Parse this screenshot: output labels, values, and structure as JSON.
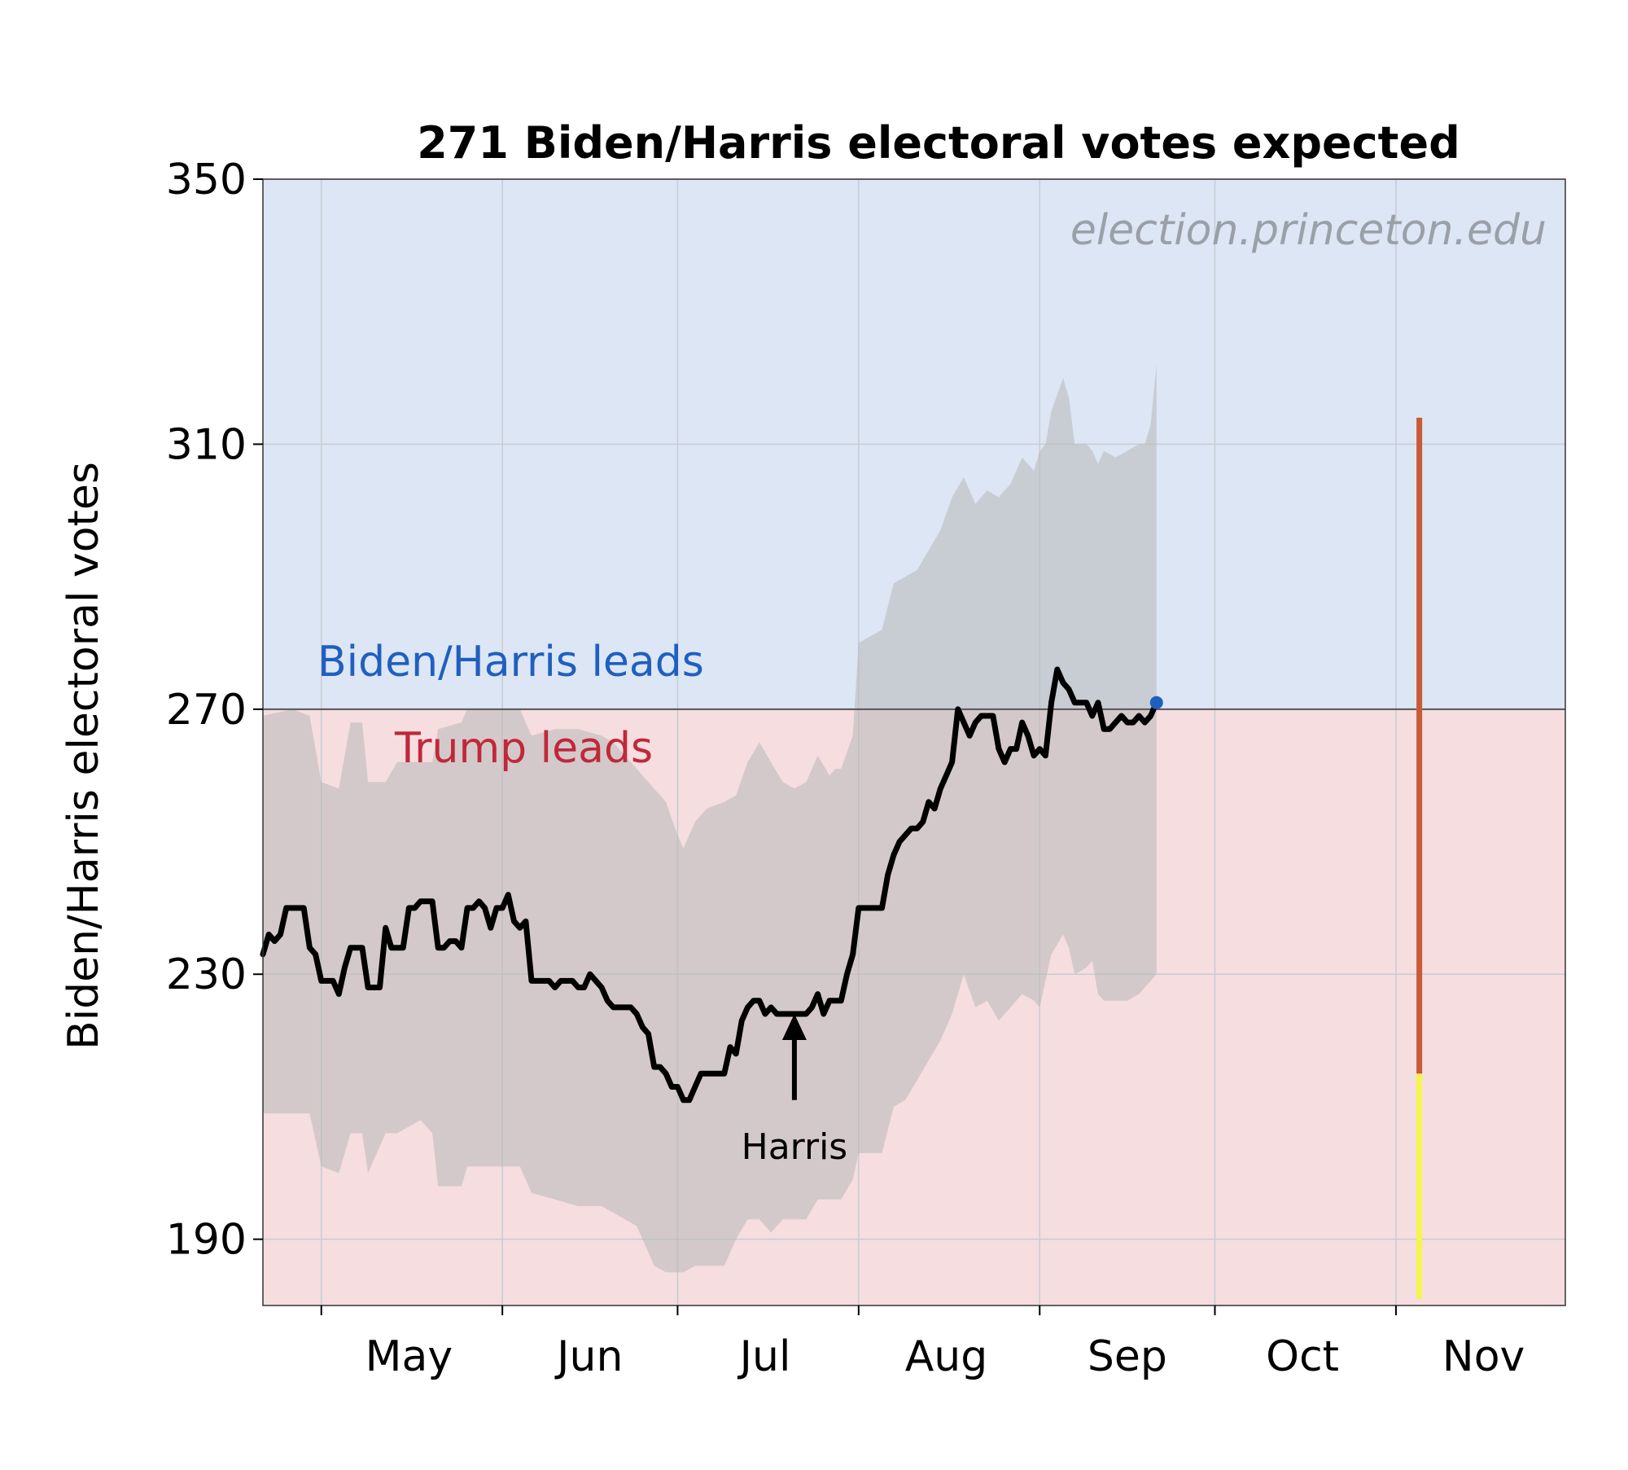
{
  "chart_data": {
    "type": "line",
    "title": "271 Biden/Harris electoral votes expected",
    "ylabel": "Biden/Harris electoral votes",
    "xlabel": "",
    "watermark": "election.princeton.edu",
    "ylim": [
      180,
      350
    ],
    "y_ticks": [
      190,
      230,
      270,
      310,
      350
    ],
    "xlim": [
      "2024-04-21",
      "2024-11-30"
    ],
    "x_ticks": [
      {
        "date": "2024-05-01",
        "label": "May"
      },
      {
        "date": "2024-06-01",
        "label": "Jun"
      },
      {
        "date": "2024-07-01",
        "label": "Jul"
      },
      {
        "date": "2024-08-01",
        "label": "Aug"
      },
      {
        "date": "2024-09-01",
        "label": "Sep"
      },
      {
        "date": "2024-10-01",
        "label": "Oct"
      },
      {
        "date": "2024-11-01",
        "label": "Nov"
      }
    ],
    "x_tick_label_offset_days": 15,
    "threshold": 270,
    "regions": {
      "above_label": "Biden/Harris leads",
      "below_label": "Trump leads",
      "above_color": "#dce6f5",
      "below_color": "#f5dde0"
    },
    "grid": true,
    "series": [
      {
        "role": "median",
        "color": "#000000",
        "points": [
          [
            "2024-04-21",
            233
          ],
          [
            "2024-04-22",
            236
          ],
          [
            "2024-04-23",
            235
          ],
          [
            "2024-04-24",
            236
          ],
          [
            "2024-04-25",
            240
          ],
          [
            "2024-04-26",
            240
          ],
          [
            "2024-04-27",
            240
          ],
          [
            "2024-04-28",
            240
          ],
          [
            "2024-04-29",
            234
          ],
          [
            "2024-04-30",
            233
          ],
          [
            "2024-05-01",
            229
          ],
          [
            "2024-05-02",
            229
          ],
          [
            "2024-05-03",
            229
          ],
          [
            "2024-05-04",
            227
          ],
          [
            "2024-05-05",
            231
          ],
          [
            "2024-05-06",
            234
          ],
          [
            "2024-05-07",
            234
          ],
          [
            "2024-05-08",
            234
          ],
          [
            "2024-05-09",
            228
          ],
          [
            "2024-05-10",
            228
          ],
          [
            "2024-05-11",
            228
          ],
          [
            "2024-05-12",
            237
          ],
          [
            "2024-05-13",
            234
          ],
          [
            "2024-05-14",
            234
          ],
          [
            "2024-05-15",
            234
          ],
          [
            "2024-05-16",
            240
          ],
          [
            "2024-05-17",
            240
          ],
          [
            "2024-05-18",
            241
          ],
          [
            "2024-05-19",
            241
          ],
          [
            "2024-05-20",
            241
          ],
          [
            "2024-05-21",
            234
          ],
          [
            "2024-05-22",
            234
          ],
          [
            "2024-05-23",
            235
          ],
          [
            "2024-05-24",
            235
          ],
          [
            "2024-05-25",
            234
          ],
          [
            "2024-05-26",
            240
          ],
          [
            "2024-05-27",
            240
          ],
          [
            "2024-05-28",
            241
          ],
          [
            "2024-05-29",
            240
          ],
          [
            "2024-05-30",
            237
          ],
          [
            "2024-05-31",
            240
          ],
          [
            "2024-06-01",
            240
          ],
          [
            "2024-06-02",
            242
          ],
          [
            "2024-06-03",
            238
          ],
          [
            "2024-06-04",
            237
          ],
          [
            "2024-06-05",
            238
          ],
          [
            "2024-06-06",
            229
          ],
          [
            "2024-06-07",
            229
          ],
          [
            "2024-06-08",
            229
          ],
          [
            "2024-06-09",
            229
          ],
          [
            "2024-06-10",
            228
          ],
          [
            "2024-06-11",
            229
          ],
          [
            "2024-06-12",
            229
          ],
          [
            "2024-06-13",
            229
          ],
          [
            "2024-06-14",
            228
          ],
          [
            "2024-06-15",
            228
          ],
          [
            "2024-06-16",
            230
          ],
          [
            "2024-06-17",
            229
          ],
          [
            "2024-06-18",
            228
          ],
          [
            "2024-06-19",
            226
          ],
          [
            "2024-06-20",
            225
          ],
          [
            "2024-06-21",
            225
          ],
          [
            "2024-06-22",
            225
          ],
          [
            "2024-06-23",
            225
          ],
          [
            "2024-06-24",
            224
          ],
          [
            "2024-06-25",
            222
          ],
          [
            "2024-06-26",
            221
          ],
          [
            "2024-06-27",
            216
          ],
          [
            "2024-06-28",
            216
          ],
          [
            "2024-06-29",
            215
          ],
          [
            "2024-06-30",
            213
          ],
          [
            "2024-07-01",
            213
          ],
          [
            "2024-07-02",
            211
          ],
          [
            "2024-07-03",
            211
          ],
          [
            "2024-07-04",
            213
          ],
          [
            "2024-07-05",
            215
          ],
          [
            "2024-07-06",
            215
          ],
          [
            "2024-07-07",
            215
          ],
          [
            "2024-07-08",
            215
          ],
          [
            "2024-07-09",
            215
          ],
          [
            "2024-07-10",
            219
          ],
          [
            "2024-07-11",
            218
          ],
          [
            "2024-07-12",
            223
          ],
          [
            "2024-07-13",
            225
          ],
          [
            "2024-07-14",
            226
          ],
          [
            "2024-07-15",
            226
          ],
          [
            "2024-07-16",
            224
          ],
          [
            "2024-07-17",
            225
          ],
          [
            "2024-07-18",
            224
          ],
          [
            "2024-07-19",
            224
          ],
          [
            "2024-07-20",
            224
          ],
          [
            "2024-07-21",
            224
          ],
          [
            "2024-07-22",
            224
          ],
          [
            "2024-07-23",
            224
          ],
          [
            "2024-07-24",
            225
          ],
          [
            "2024-07-25",
            227
          ],
          [
            "2024-07-26",
            224
          ],
          [
            "2024-07-27",
            226
          ],
          [
            "2024-07-28",
            226
          ],
          [
            "2024-07-29",
            226
          ],
          [
            "2024-07-30",
            230
          ],
          [
            "2024-07-31",
            233
          ],
          [
            "2024-08-01",
            240
          ],
          [
            "2024-08-02",
            240
          ],
          [
            "2024-08-03",
            240
          ],
          [
            "2024-08-04",
            240
          ],
          [
            "2024-08-05",
            240
          ],
          [
            "2024-08-06",
            245
          ],
          [
            "2024-08-07",
            248
          ],
          [
            "2024-08-08",
            250
          ],
          [
            "2024-08-09",
            251
          ],
          [
            "2024-08-10",
            252
          ],
          [
            "2024-08-11",
            252
          ],
          [
            "2024-08-12",
            253
          ],
          [
            "2024-08-13",
            256
          ],
          [
            "2024-08-14",
            255
          ],
          [
            "2024-08-15",
            258
          ],
          [
            "2024-08-16",
            260
          ],
          [
            "2024-08-17",
            262
          ],
          [
            "2024-08-18",
            270
          ],
          [
            "2024-08-19",
            268
          ],
          [
            "2024-08-20",
            266
          ],
          [
            "2024-08-21",
            268
          ],
          [
            "2024-08-22",
            269
          ],
          [
            "2024-08-23",
            269
          ],
          [
            "2024-08-24",
            269
          ],
          [
            "2024-08-25",
            264
          ],
          [
            "2024-08-26",
            262
          ],
          [
            "2024-08-27",
            264
          ],
          [
            "2024-08-28",
            264
          ],
          [
            "2024-08-29",
            268
          ],
          [
            "2024-08-30",
            266
          ],
          [
            "2024-08-31",
            263
          ],
          [
            "2024-09-01",
            264
          ],
          [
            "2024-09-02",
            263
          ],
          [
            "2024-09-03",
            271
          ],
          [
            "2024-09-04",
            276
          ],
          [
            "2024-09-05",
            274
          ],
          [
            "2024-09-06",
            273
          ],
          [
            "2024-09-07",
            271
          ],
          [
            "2024-09-08",
            271
          ],
          [
            "2024-09-09",
            271
          ],
          [
            "2024-09-10",
            269
          ],
          [
            "2024-09-11",
            271
          ],
          [
            "2024-09-12",
            267
          ],
          [
            "2024-09-13",
            267
          ],
          [
            "2024-09-14",
            268
          ],
          [
            "2024-09-15",
            269
          ],
          [
            "2024-09-16",
            268
          ],
          [
            "2024-09-17",
            268
          ],
          [
            "2024-09-18",
            269
          ],
          [
            "2024-09-19",
            268
          ],
          [
            "2024-09-20",
            269
          ],
          [
            "2024-09-21",
            271
          ]
        ]
      },
      {
        "role": "band",
        "color": "#b8b8b8",
        "points": [
          [
            "2024-04-21",
            269,
            209
          ],
          [
            "2024-04-26",
            270,
            209
          ],
          [
            "2024-04-29",
            269,
            209
          ],
          [
            "2024-05-01",
            259,
            201
          ],
          [
            "2024-05-04",
            258,
            200
          ],
          [
            "2024-05-06",
            268,
            206
          ],
          [
            "2024-05-08",
            268,
            206
          ],
          [
            "2024-05-09",
            259,
            200
          ],
          [
            "2024-05-12",
            259,
            206
          ],
          [
            "2024-05-14",
            262,
            206
          ],
          [
            "2024-05-16",
            262,
            207
          ],
          [
            "2024-05-18",
            262,
            208
          ],
          [
            "2024-05-20",
            262,
            206
          ],
          [
            "2024-05-21",
            267,
            198
          ],
          [
            "2024-05-25",
            268,
            198
          ],
          [
            "2024-05-26",
            270,
            201
          ],
          [
            "2024-05-31",
            270,
            201
          ],
          [
            "2024-06-04",
            270,
            201
          ],
          [
            "2024-06-06",
            266,
            197
          ],
          [
            "2024-06-10",
            267,
            196
          ],
          [
            "2024-06-14",
            267,
            195
          ],
          [
            "2024-06-18",
            266,
            195
          ],
          [
            "2024-06-20",
            265,
            194
          ],
          [
            "2024-06-22",
            263,
            193
          ],
          [
            "2024-06-24",
            261,
            192
          ],
          [
            "2024-06-27",
            258,
            186
          ],
          [
            "2024-06-29",
            256,
            185
          ],
          [
            "2024-07-01",
            251,
            185
          ],
          [
            "2024-07-02",
            249,
            185
          ],
          [
            "2024-07-04",
            253,
            186
          ],
          [
            "2024-07-06",
            255,
            186
          ],
          [
            "2024-07-09",
            256,
            186
          ],
          [
            "2024-07-11",
            257,
            190
          ],
          [
            "2024-07-13",
            262,
            193
          ],
          [
            "2024-07-15",
            265,
            193
          ],
          [
            "2024-07-17",
            262,
            191
          ],
          [
            "2024-07-19",
            259,
            193
          ],
          [
            "2024-07-21",
            258,
            193
          ],
          [
            "2024-07-23",
            259,
            193
          ],
          [
            "2024-07-25",
            263,
            196
          ],
          [
            "2024-07-27",
            260,
            196
          ],
          [
            "2024-07-28",
            261,
            196
          ],
          [
            "2024-07-29",
            261,
            196
          ],
          [
            "2024-07-31",
            266,
            199
          ],
          [
            "2024-08-01",
            280,
            203
          ],
          [
            "2024-08-03",
            281,
            203
          ],
          [
            "2024-08-05",
            282,
            203
          ],
          [
            "2024-08-07",
            289,
            210
          ],
          [
            "2024-08-09",
            290,
            211
          ],
          [
            "2024-08-11",
            291,
            214
          ],
          [
            "2024-08-13",
            294,
            217
          ],
          [
            "2024-08-15",
            297,
            220
          ],
          [
            "2024-08-17",
            302,
            224
          ],
          [
            "2024-08-19",
            305,
            230
          ],
          [
            "2024-08-21",
            301,
            225
          ],
          [
            "2024-08-23",
            303,
            226
          ],
          [
            "2024-08-25",
            302,
            223
          ],
          [
            "2024-08-27",
            304,
            225
          ],
          [
            "2024-08-29",
            308,
            227
          ],
          [
            "2024-08-31",
            306,
            226
          ],
          [
            "2024-09-01",
            309,
            225
          ],
          [
            "2024-09-02",
            310,
            229
          ],
          [
            "2024-09-03",
            315,
            233
          ],
          [
            "2024-09-05",
            320,
            236
          ],
          [
            "2024-09-06",
            317,
            234
          ],
          [
            "2024-09-07",
            310,
            230
          ],
          [
            "2024-09-09",
            310,
            231
          ],
          [
            "2024-09-10",
            309,
            232
          ],
          [
            "2024-09-11",
            307,
            227
          ],
          [
            "2024-09-12",
            309,
            226
          ],
          [
            "2024-09-14",
            308,
            226
          ],
          [
            "2024-09-16",
            309,
            226
          ],
          [
            "2024-09-18",
            310,
            227
          ],
          [
            "2024-09-19",
            310,
            228
          ],
          [
            "2024-09-20",
            313,
            229
          ],
          [
            "2024-09-21",
            322,
            230
          ]
        ]
      }
    ],
    "current_point": {
      "date": "2024-09-21",
      "value": 271,
      "color": "#1f5fbf"
    },
    "election_bar": {
      "date": "2024-11-05",
      "outer": [
        181,
        314
      ],
      "inner": [
        215,
        314
      ],
      "outer_color": "#f5f54a",
      "inner_color": "#c85a3a"
    },
    "annotations": [
      {
        "text": "Harris",
        "date": "2024-07-21",
        "arrow_tip_value": 224,
        "arrow_tail_value": 211
      }
    ]
  }
}
